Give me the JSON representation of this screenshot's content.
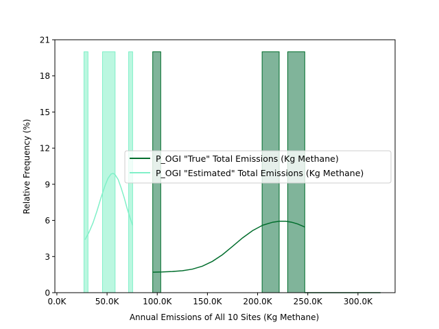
{
  "chart_data": {
    "type": "histogram",
    "xlabel": "Annual Emissions of All 10 Sites (Kg Methane)",
    "ylabel": "Relative Frequency (%)",
    "xlim": [
      -2000,
      337000
    ],
    "ylim": [
      0,
      21
    ],
    "x_ticks": [
      {
        "value": 0,
        "label": "0.0K"
      },
      {
        "value": 50000,
        "label": "50.0K"
      },
      {
        "value": 100000,
        "label": "100.0K"
      },
      {
        "value": 150000,
        "label": "150.0K"
      },
      {
        "value": 200000,
        "label": "200.0K"
      },
      {
        "value": 250000,
        "label": "250.0K"
      },
      {
        "value": 300000,
        "label": "300.0K"
      }
    ],
    "y_ticks": [
      {
        "value": 0,
        "label": "0"
      },
      {
        "value": 3,
        "label": "3"
      },
      {
        "value": 6,
        "label": "6"
      },
      {
        "value": 9,
        "label": "9"
      },
      {
        "value": 12,
        "label": "12"
      },
      {
        "value": 15,
        "label": "15"
      },
      {
        "value": 18,
        "label": "18"
      },
      {
        "value": 21,
        "label": "21"
      }
    ],
    "grid": false,
    "legend_position": "center-right",
    "series": [
      {
        "name": "P_OGI \"True\" Total Emissions (Kg Methane)",
        "line_color": "#006d2c",
        "bar_fill": "#80b49a",
        "bar_edge": "#006d2c",
        "bins": [
          {
            "x0": 95500,
            "x1": 103500,
            "value": 20
          },
          {
            "x0": 204500,
            "x1": 221500,
            "value": 20
          },
          {
            "x0": 230000,
            "x1": 247000,
            "value": 20
          }
        ],
        "kde_x": [
          95500,
          105000,
          115000,
          125000,
          135000,
          145000,
          155000,
          165000,
          175000,
          185000,
          195000,
          205000,
          215000,
          222000,
          228000,
          234000,
          240000,
          247000
        ],
        "kde_y": [
          1.7,
          1.72,
          1.76,
          1.82,
          1.95,
          2.2,
          2.6,
          3.15,
          3.85,
          4.55,
          5.15,
          5.6,
          5.85,
          5.93,
          5.93,
          5.85,
          5.7,
          5.45
        ],
        "tail_x": [
          247000,
          322500
        ],
        "tail_y": [
          0,
          0
        ]
      },
      {
        "name": "P_OGI \"Estimated\" Total Emissions (Kg Methane)",
        "line_color": "#80f0c8",
        "bar_fill": "#bbf7e0",
        "bar_edge": "#80f0c8",
        "bins": [
          {
            "x0": 27000,
            "x1": 31000,
            "value": 20
          },
          {
            "x0": 45500,
            "x1": 58000,
            "value": 20
          },
          {
            "x0": 71500,
            "x1": 75500,
            "value": 20
          }
        ],
        "kde_x": [
          28000,
          32000,
          36000,
          40000,
          44000,
          48000,
          51000,
          54000,
          56000,
          58000,
          61000,
          64000,
          67000,
          70000,
          73000,
          75500
        ],
        "kde_y": [
          4.4,
          5.0,
          5.8,
          6.8,
          7.9,
          8.9,
          9.5,
          9.85,
          9.9,
          9.8,
          9.4,
          8.7,
          7.9,
          7.0,
          6.2,
          5.6
        ]
      }
    ]
  }
}
